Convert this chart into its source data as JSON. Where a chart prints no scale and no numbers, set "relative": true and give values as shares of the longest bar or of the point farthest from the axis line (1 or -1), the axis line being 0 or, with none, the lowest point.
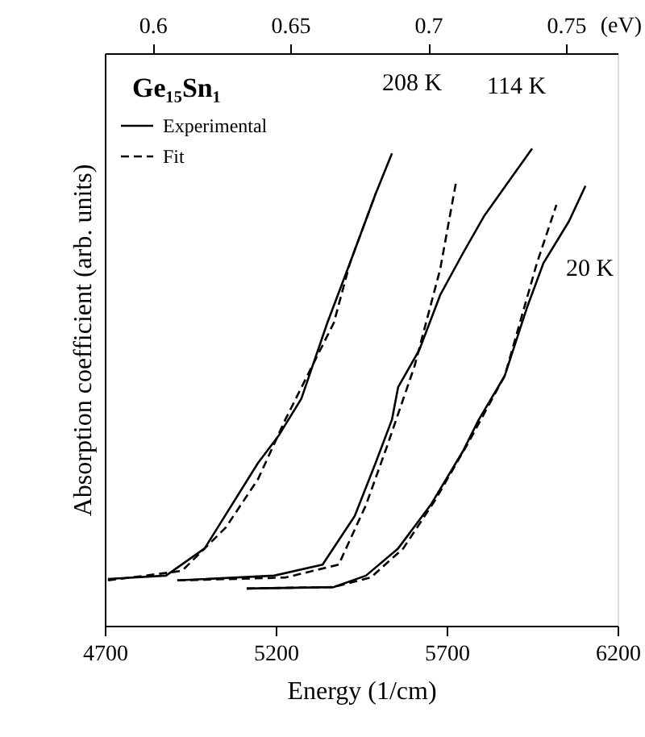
{
  "chart_data": {
    "type": "line",
    "relative": true,
    "xlabel": "Energy (1/cm)",
    "ylabel": "Absorption coefficient (arb. units)",
    "x2label": "(eV)",
    "xlim": [
      4700,
      6200
    ],
    "xticks": [
      4700,
      5200,
      5700,
      6200
    ],
    "x2lim": [
      0.5827,
      0.7687
    ],
    "x2ticks": [
      0.6,
      0.65,
      0.7,
      0.75
    ],
    "legend": "top left",
    "grid": false,
    "series": [
      {
        "name": "Experimental",
        "color": "#000000",
        "line_style": "solid",
        "x": [
          4709,
          4879,
          4992,
          5148,
          5209,
          5275,
          5351,
          5417,
          5492,
          5540
        ],
        "values": [
          0.098,
          0.105,
          0.162,
          0.341,
          0.399,
          0.476,
          0.635,
          0.76,
          0.905,
          0.99
        ]
      },
      {
        "name": "Fit",
        "color": "#000000",
        "line_style": "dashed",
        "x": [
          4709,
          4926,
          5054,
          5148,
          5228,
          5370,
          5417,
          5492
        ],
        "values": [
          0.095,
          0.115,
          0.206,
          0.307,
          0.432,
          0.635,
          0.76,
          0.905
        ]
      },
      {
        "color": "#000000",
        "line_style": "solid",
        "x": [
          4912,
          5195,
          5337,
          5431,
          5492,
          5540,
          5558,
          5620,
          5681,
          5747,
          5809,
          5889,
          5950
        ],
        "values": [
          0.095,
          0.105,
          0.128,
          0.23,
          0.341,
          0.432,
          0.5,
          0.578,
          0.693,
          0.78,
          0.858,
          0.939,
          1.0
        ]
      },
      {
        "color": "#000000",
        "line_style": "dashed",
        "x": [
          4912,
          5228,
          5384,
          5464,
          5525,
          5606,
          5681,
          5728
        ],
        "values": [
          0.095,
          0.101,
          0.128,
          0.253,
          0.375,
          0.544,
          0.747,
          0.932
        ]
      },
      {
        "color": "#000000",
        "line_style": "solid",
        "x": [
          5115,
          5370,
          5464,
          5558,
          5653,
          5747,
          5794,
          5870,
          5936,
          5983,
          6058,
          6106
        ],
        "values": [
          0.078,
          0.081,
          0.105,
          0.162,
          0.253,
          0.365,
          0.432,
          0.524,
          0.669,
          0.76,
          0.848,
          0.922
        ]
      },
      {
        "color": "#000000",
        "line_style": "dashed",
        "x": [
          5115,
          5370,
          5478,
          5573,
          5667,
          5762,
          5870,
          5964,
          6021
        ],
        "values": [
          0.078,
          0.081,
          0.101,
          0.162,
          0.264,
          0.382,
          0.524,
          0.76,
          0.882
        ]
      }
    ],
    "annotations": [
      "Ge₁₅Sn₁",
      "208 K",
      "114 K",
      "20 K"
    ]
  }
}
